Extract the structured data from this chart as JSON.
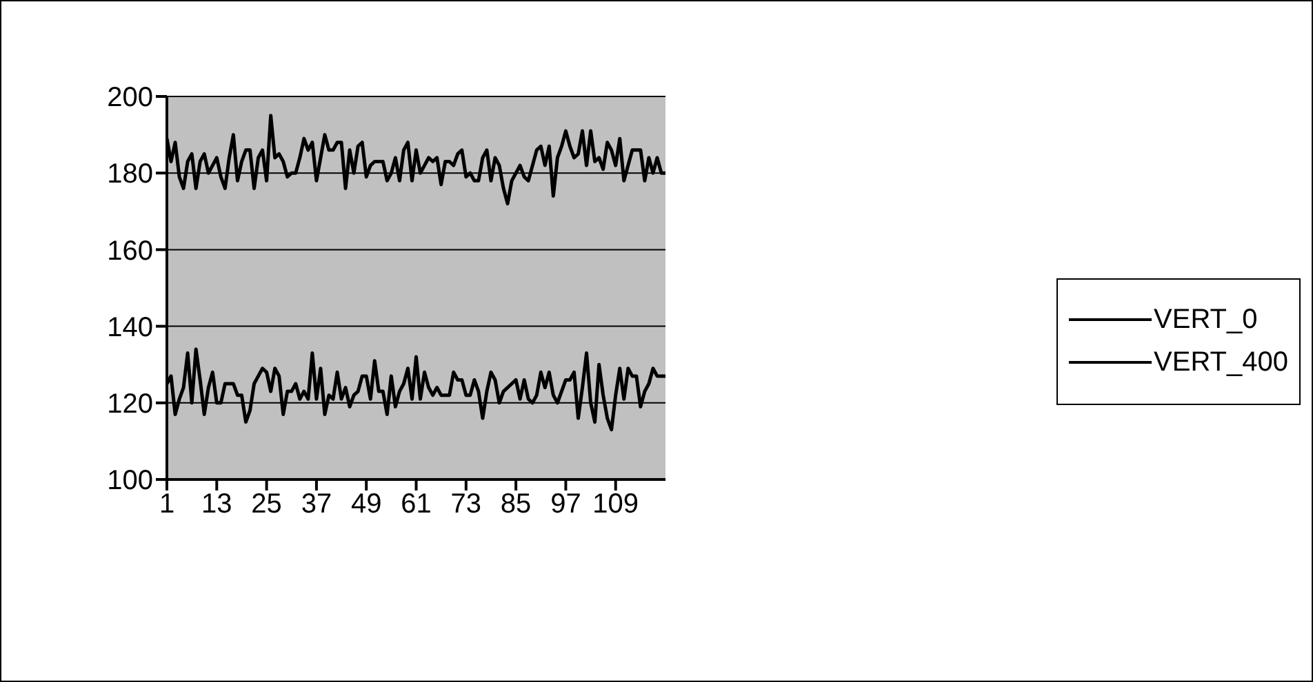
{
  "chart_data": {
    "type": "line",
    "categories": [
      "1",
      null,
      null,
      null,
      null,
      null,
      null,
      null,
      null,
      null,
      null,
      null,
      "13",
      null,
      null,
      null,
      null,
      null,
      null,
      null,
      null,
      null,
      null,
      null,
      "25",
      null,
      null,
      null,
      null,
      null,
      null,
      null,
      null,
      null,
      null,
      null,
      "37",
      null,
      null,
      null,
      null,
      null,
      null,
      null,
      null,
      null,
      null,
      null,
      "49",
      null,
      null,
      null,
      null,
      null,
      null,
      null,
      null,
      null,
      null,
      null,
      "61",
      null,
      null,
      null,
      null,
      null,
      null,
      null,
      null,
      null,
      null,
      null,
      "73",
      null,
      null,
      null,
      null,
      null,
      null,
      null,
      null,
      null,
      null,
      null,
      "85",
      null,
      null,
      null,
      null,
      null,
      null,
      null,
      null,
      null,
      null,
      null,
      "97",
      null,
      null,
      null,
      null,
      null,
      null,
      null,
      null,
      null,
      null,
      null,
      "109",
      null,
      null,
      null,
      null,
      null,
      null,
      null,
      null,
      null,
      null,
      null,
      null
    ],
    "series": [
      {
        "name": "VERT_400",
        "color": "#000000",
        "values": [
          189,
          183,
          188,
          179,
          176,
          183,
          185,
          176,
          183,
          185,
          180,
          182,
          184,
          179,
          176,
          184,
          190,
          178,
          183,
          186,
          186,
          176,
          184,
          186,
          178,
          195,
          184,
          185,
          183,
          179,
          180,
          180,
          184,
          189,
          186,
          188,
          178,
          184,
          190,
          186,
          186,
          188,
          188,
          176,
          186,
          180,
          187,
          188,
          179,
          182,
          183,
          183,
          183,
          178,
          180,
          184,
          178,
          186,
          188,
          178,
          186,
          180,
          182,
          184,
          183,
          184,
          177,
          183,
          183,
          182,
          185,
          186,
          179,
          180,
          178,
          178,
          184,
          186,
          178,
          184,
          182,
          176,
          172,
          178,
          180,
          182,
          179,
          178,
          182,
          186,
          187,
          182,
          187,
          174,
          184,
          187,
          191,
          187,
          184,
          185,
          191,
          182,
          191,
          183,
          184,
          181,
          188,
          186,
          182,
          189,
          178,
          182,
          186,
          186,
          186,
          178,
          184,
          180,
          184,
          180,
          180
        ]
      },
      {
        "name": "VERT_0",
        "color": "#000000",
        "values": [
          125,
          127,
          117,
          121,
          124,
          133,
          120,
          134,
          126,
          117,
          124,
          128,
          120,
          120,
          125,
          125,
          125,
          122,
          122,
          115,
          118,
          125,
          127,
          129,
          128,
          123,
          129,
          127,
          117,
          123,
          123,
          125,
          121,
          123,
          121,
          133,
          121,
          129,
          117,
          122,
          121,
          128,
          121,
          124,
          119,
          122,
          123,
          127,
          127,
          121,
          131,
          123,
          123,
          117,
          127,
          119,
          123,
          125,
          129,
          121,
          132,
          121,
          128,
          124,
          122,
          124,
          122,
          122,
          122,
          128,
          126,
          126,
          122,
          122,
          126,
          123,
          116,
          123,
          128,
          126,
          120,
          123,
          124,
          125,
          126,
          121,
          126,
          121,
          120,
          122,
          128,
          124,
          128,
          122,
          120,
          123,
          126,
          126,
          128,
          116,
          124,
          133,
          120,
          115,
          130,
          122,
          116,
          113,
          122,
          129,
          121,
          129,
          127,
          127,
          119,
          123,
          125,
          129,
          127,
          127,
          127
        ]
      }
    ],
    "ylim": [
      100,
      200
    ],
    "yticks": [
      100,
      120,
      140,
      160,
      180,
      200
    ],
    "grid": "y",
    "legend": "right"
  }
}
